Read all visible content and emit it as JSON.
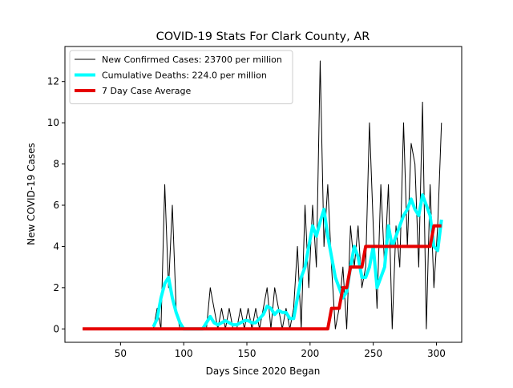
{
  "chart_data": {
    "type": "line",
    "title": "COVID-19 Stats For Clark County, AR",
    "x_label": "Days Since 2020 Began",
    "y_label": "New COVID-19 Cases",
    "x": [
      20,
      30,
      40,
      50,
      60,
      70,
      76,
      79,
      82,
      85,
      88,
      91,
      94,
      97,
      100,
      103,
      106,
      109,
      112,
      115,
      118,
      121,
      124,
      127,
      130,
      133,
      136,
      139,
      142,
      145,
      148,
      151,
      154,
      157,
      160,
      163,
      166,
      169,
      172,
      175,
      178,
      181,
      184,
      187,
      190,
      193,
      196,
      199,
      202,
      205,
      208,
      211,
      214,
      217,
      220,
      223,
      226,
      229,
      232,
      235,
      238,
      241,
      244,
      247,
      250,
      253,
      256,
      259,
      262,
      265,
      268,
      271,
      274,
      277,
      280,
      283,
      286,
      289,
      292,
      295,
      298,
      301,
      304
    ],
    "series": [
      {
        "name": "New Confirmed Cases: 23700 per million",
        "color": "#000000",
        "width": 1,
        "values": [
          0,
          0,
          0,
          0,
          0,
          0,
          0,
          1,
          0,
          7,
          2,
          6,
          1,
          0,
          0,
          0,
          0,
          0,
          0,
          0,
          0,
          2,
          1,
          0,
          1,
          0,
          1,
          0,
          0,
          1,
          0,
          1,
          0,
          1,
          0,
          1,
          2,
          0,
          2,
          1,
          0,
          1,
          0,
          1,
          4,
          0,
          6,
          2,
          6,
          3,
          13,
          4,
          7,
          3,
          0,
          1,
          3,
          0,
          5,
          3,
          5,
          2,
          3,
          10,
          5,
          1,
          7,
          3,
          7,
          0,
          5,
          3,
          10,
          4,
          9,
          8,
          3,
          11,
          0,
          7,
          2,
          5,
          10
        ]
      },
      {
        "name": "Cumulative Deaths: 224.0 per million",
        "color": "#00ffff",
        "width": 4,
        "values": [
          null,
          null,
          null,
          null,
          null,
          null,
          0.1,
          0.5,
          1.5,
          2.2,
          2.5,
          1.5,
          0.8,
          0.3,
          0,
          0,
          0,
          0,
          0,
          0,
          0.3,
          0.6,
          0.3,
          0.2,
          0.3,
          0.4,
          0.3,
          0.2,
          0.2,
          0.3,
          0.4,
          0.4,
          0.3,
          0.3,
          0.5,
          0.7,
          1.1,
          1,
          0.7,
          0.9,
          0.8,
          0.8,
          0.5,
          0.5,
          1.5,
          2.5,
          3,
          4,
          5,
          4.5,
          5.2,
          5.8,
          4.5,
          3.5,
          2.5,
          2,
          1.5,
          1.8,
          3,
          4,
          3.5,
          2.5,
          2.5,
          3,
          4,
          2,
          2.5,
          3,
          5,
          4,
          4.5,
          5,
          5.5,
          5.8,
          6.3,
          5.8,
          5.5,
          6.5,
          6,
          5.5,
          4,
          3.8,
          5.3
        ]
      },
      {
        "name": "7 Day Case Average",
        "color": "#e60000",
        "width": 4,
        "values": [
          0,
          0,
          0,
          0,
          0,
          0,
          0,
          0,
          0,
          0,
          0,
          0,
          0,
          0,
          0,
          0,
          0,
          0,
          0,
          0,
          0,
          0,
          0,
          0,
          0,
          0,
          0,
          0,
          0,
          0,
          0,
          0,
          0,
          0,
          0,
          0,
          0,
          0,
          0,
          0,
          0,
          0,
          0,
          0,
          0,
          0,
          0,
          0,
          0,
          0,
          0,
          0,
          0,
          1,
          1,
          1,
          2,
          2,
          3,
          3,
          3,
          3,
          4,
          4,
          4,
          4,
          4,
          4,
          4,
          4,
          4,
          4,
          4,
          4,
          4,
          4,
          4,
          4,
          4,
          4,
          5,
          5,
          5
        ]
      }
    ],
    "xlim": [
      6,
      320
    ],
    "ylim": [
      -0.65,
      13.7
    ],
    "xticks": [
      50,
      100,
      150,
      200,
      250,
      300
    ],
    "yticks": [
      0,
      2,
      4,
      6,
      8,
      10,
      12
    ],
    "legend": "upper left"
  }
}
